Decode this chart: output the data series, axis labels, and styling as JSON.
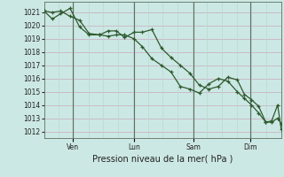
{
  "background_color": "#cce8e4",
  "grid_color_major": "#c8b8c8",
  "grid_color_minor": "#dde8e4",
  "line_color": "#2d5a2d",
  "ylabel": "Pression niveau de la mer( hPa )",
  "ylim": [
    1011.5,
    1021.8
  ],
  "yticks": [
    1012,
    1013,
    1014,
    1015,
    1016,
    1017,
    1018,
    1019,
    1020,
    1021
  ],
  "xtick_labels": [
    "Ven",
    "Lun",
    "Sam",
    "Dim"
  ],
  "xtick_positions": [
    0.12,
    0.38,
    0.63,
    0.87
  ],
  "series1_x": [
    0.0,
    0.035,
    0.07,
    0.11,
    0.15,
    0.19,
    0.235,
    0.27,
    0.305,
    0.34,
    0.38,
    0.415,
    0.455,
    0.495,
    0.535,
    0.575,
    0.615,
    0.655,
    0.695,
    0.735,
    0.775,
    0.815,
    0.845,
    0.875,
    0.905,
    0.935,
    0.96,
    0.985,
    1.0
  ],
  "series1_y": [
    1021.1,
    1021.0,
    1021.1,
    1020.7,
    1020.4,
    1019.4,
    1019.3,
    1019.6,
    1019.6,
    1019.1,
    1019.5,
    1019.5,
    1019.7,
    1018.3,
    1017.6,
    1017.0,
    1016.4,
    1015.5,
    1015.2,
    1015.4,
    1016.1,
    1015.9,
    1014.8,
    1014.4,
    1013.9,
    1012.7,
    1012.7,
    1013.0,
    1012.6
  ],
  "series2_x": [
    0.0,
    0.035,
    0.07,
    0.11,
    0.15,
    0.19,
    0.235,
    0.27,
    0.305,
    0.34,
    0.38,
    0.415,
    0.455,
    0.495,
    0.535,
    0.575,
    0.615,
    0.655,
    0.695,
    0.735,
    0.775,
    0.815,
    0.845,
    0.875,
    0.905,
    0.935,
    0.96,
    0.985,
    1.0
  ],
  "series2_y": [
    1021.1,
    1020.5,
    1020.9,
    1021.3,
    1019.9,
    1019.3,
    1019.3,
    1019.2,
    1019.3,
    1019.3,
    1019.0,
    1018.4,
    1017.5,
    1017.0,
    1016.5,
    1015.4,
    1015.2,
    1014.9,
    1015.6,
    1016.0,
    1015.8,
    1015.0,
    1014.5,
    1014.0,
    1013.4,
    1012.7,
    1012.8,
    1014.0,
    1012.2
  ],
  "vline_positions": [
    0.12,
    0.38,
    0.63,
    0.87
  ],
  "vline_color": "#506050",
  "title_fontsize": 6.5,
  "tick_fontsize": 5.5,
  "xlabel_fontsize": 7.0
}
